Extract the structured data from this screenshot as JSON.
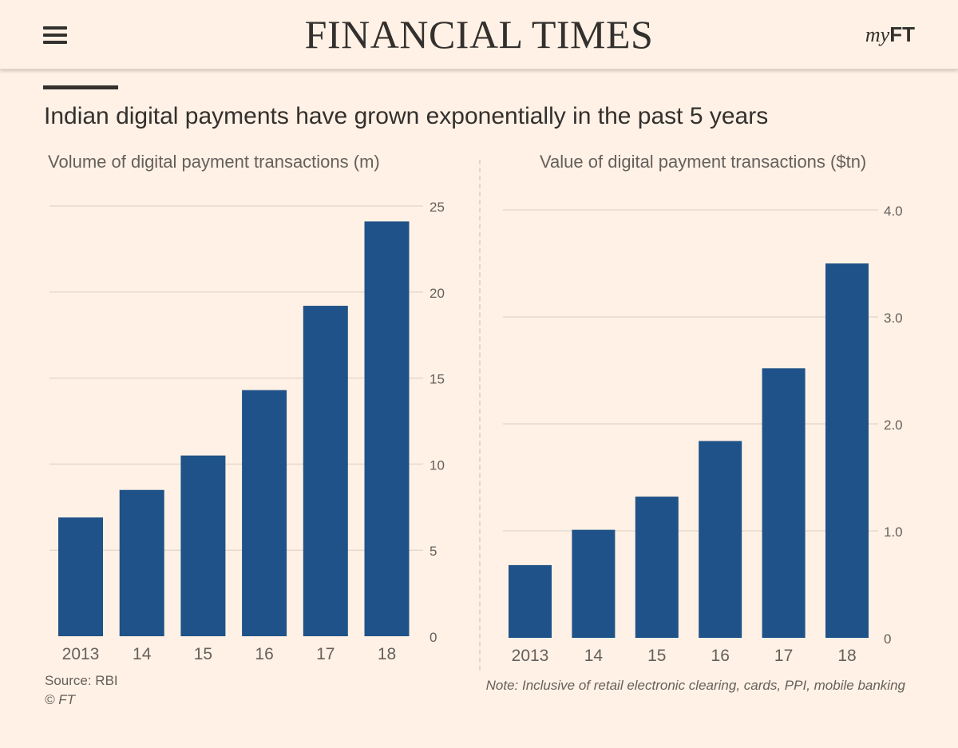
{
  "header": {
    "masthead": "FINANCIAL TIMES",
    "myft_prefix": "my",
    "myft_suffix": "FT"
  },
  "article": {
    "chart_title": "Indian digital payments have grown exponentially in the past 5 years",
    "source": "Source: RBI",
    "copyright": "© FT",
    "note": "Note: Inclusive of retail electronic clearing, cards, PPI, mobile banking"
  },
  "colors": {
    "background": "#fff1e5",
    "bar": "#1f5288",
    "grid": "#e6d9ce",
    "text": "#33302e",
    "muted": "#66605c"
  },
  "chart_data": [
    {
      "type": "bar",
      "title": "Volume of digital payment transactions (m)",
      "categories": [
        "2013",
        "14",
        "15",
        "16",
        "17",
        "18"
      ],
      "values": [
        6.9,
        8.5,
        10.5,
        14.3,
        19.2,
        24.1
      ],
      "ylim": [
        0,
        25
      ],
      "yticks": [
        0,
        5,
        10,
        15,
        20,
        25
      ],
      "ytick_labels": [
        "0",
        "5",
        "10",
        "15",
        "20",
        "25"
      ],
      "xlabel": "",
      "ylabel": "",
      "grid": true
    },
    {
      "type": "bar",
      "title": "Value of digital payment transactions ($tn)",
      "categories": [
        "2013",
        "14",
        "15",
        "16",
        "17",
        "18"
      ],
      "values": [
        0.68,
        1.01,
        1.32,
        1.84,
        2.52,
        3.5
      ],
      "ylim": [
        0,
        4
      ],
      "yticks": [
        0,
        1,
        2,
        3,
        4
      ],
      "ytick_labels": [
        "0",
        "1.0",
        "2.0",
        "3.0",
        "4.0"
      ],
      "xlabel": "",
      "ylabel": "",
      "grid": true
    }
  ]
}
